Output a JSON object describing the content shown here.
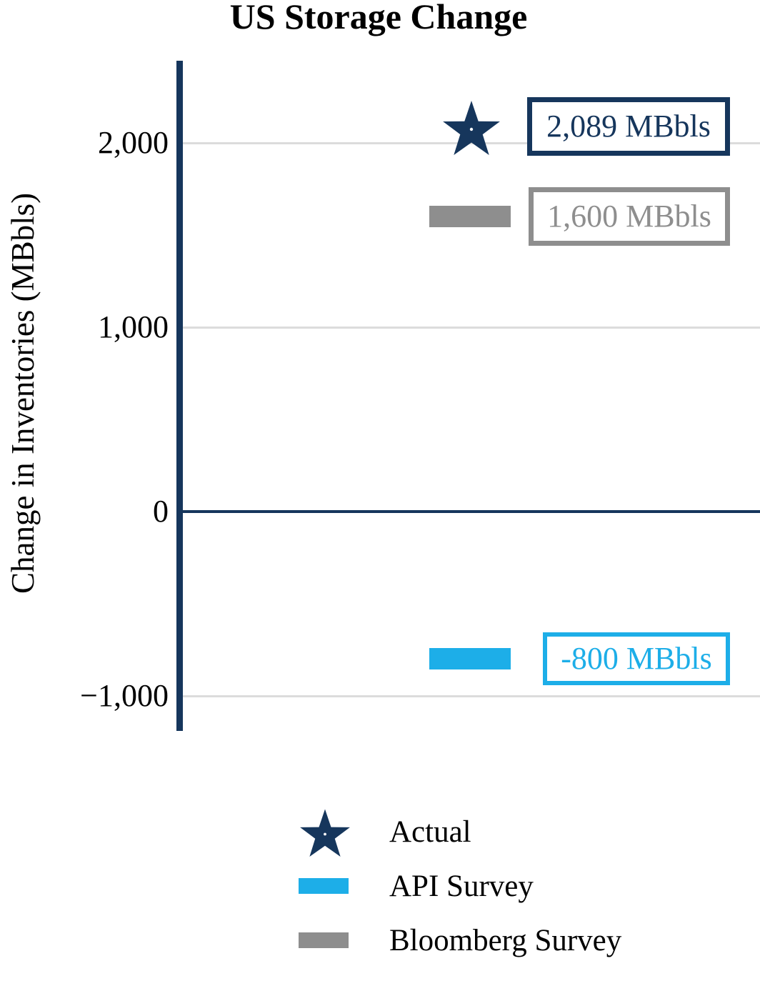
{
  "title": "US Storage Change",
  "y_axis": {
    "label": "Change in Inventories (MBbls)",
    "ticks": [
      {
        "value": 2000,
        "label": "2,000"
      },
      {
        "value": 1000,
        "label": "1,000"
      },
      {
        "value": 0,
        "label": "0"
      },
      {
        "value": -1000,
        "label": "−1,000"
      }
    ]
  },
  "colors": {
    "navy": "#16365c",
    "blue": "#1daee8",
    "gray": "#8e8e8e",
    "gridline": "#dcdcdc"
  },
  "chart_data": {
    "type": "scatter",
    "title": "US Storage Change",
    "xlabel": "",
    "ylabel": "Change in Inventories (MBbls)",
    "ylim": [
      -1250,
      2450
    ],
    "grid": true,
    "legend_position": "below",
    "series": [
      {
        "name": "Actual",
        "marker": "star",
        "color": "#16365c",
        "value": 2089,
        "annotation": "2,089 MBbls"
      },
      {
        "name": "Bloomberg Survey",
        "marker": "bar",
        "color": "#8e8e8e",
        "value": 1600,
        "annotation": "1,600 MBbls"
      },
      {
        "name": "API Survey",
        "marker": "bar",
        "color": "#1daee8",
        "value": -800,
        "annotation": "-800 MBbls"
      }
    ]
  },
  "legend": [
    {
      "label": "Actual",
      "marker": "star",
      "color": "#16365c"
    },
    {
      "label": "API Survey",
      "marker": "bar",
      "color": "#1daee8"
    },
    {
      "label": "Bloomberg Survey",
      "marker": "bar",
      "color": "#8e8e8e"
    }
  ]
}
